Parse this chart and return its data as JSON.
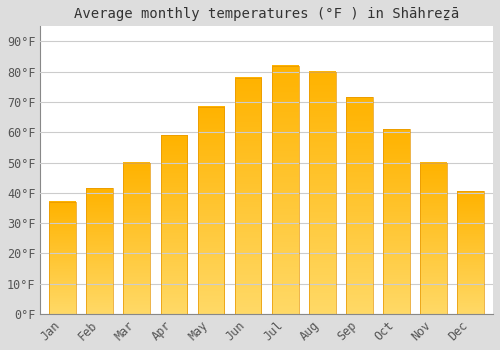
{
  "title": "Average monthly temperatures (°F ) in Shāhreẕā",
  "months": [
    "Jan",
    "Feb",
    "Mar",
    "Apr",
    "May",
    "Jun",
    "Jul",
    "Aug",
    "Sep",
    "Oct",
    "Nov",
    "Dec"
  ],
  "values": [
    37,
    41.5,
    50,
    59,
    68.5,
    78,
    82,
    80,
    71.5,
    61,
    50,
    40.5
  ],
  "bar_color_top": "#FFB300",
  "bar_color_bottom": "#FFD966",
  "bar_edge_color": "#E69500",
  "background_color": "#DDDDDD",
  "plot_bg_color": "#FFFFFF",
  "grid_color": "#CCCCCC",
  "text_color": "#555555",
  "title_color": "#333333",
  "ylim": [
    0,
    95
  ],
  "yticks": [
    0,
    10,
    20,
    30,
    40,
    50,
    60,
    70,
    80,
    90
  ],
  "ytick_labels": [
    "0°F",
    "10°F",
    "20°F",
    "30°F",
    "40°F",
    "50°F",
    "60°F",
    "70°F",
    "80°F",
    "90°F"
  ],
  "title_fontsize": 10,
  "tick_fontsize": 8.5
}
